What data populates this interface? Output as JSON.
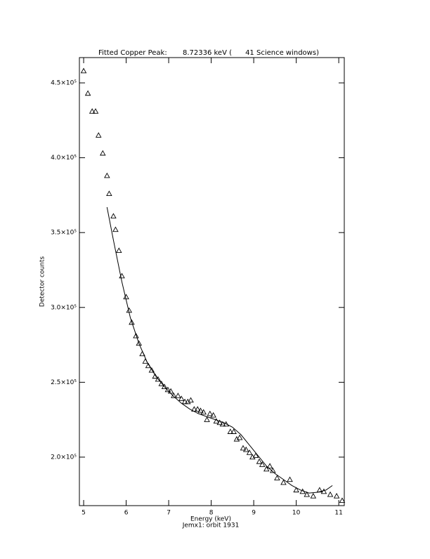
{
  "chart_data": {
    "type": "scatter",
    "title": "Fitted Copper Peak:       8.72336 keV (      41 Science windows)",
    "x_label": "Energy (keV)",
    "y_label": "Detector counts",
    "subtitle": "Jemx1: orbit 1931",
    "xlim": [
      4.9,
      11.13
    ],
    "ylim": [
      167600,
      466900
    ],
    "xticks": [
      5,
      6,
      7,
      8,
      9,
      10,
      11
    ],
    "yticks": [
      {
        "value": 200000,
        "label": "2.0×10⁵"
      },
      {
        "value": 250000,
        "label": "2.5×10⁵"
      },
      {
        "value": 300000,
        "label": "3.0×10⁵"
      },
      {
        "value": 350000,
        "label": "3.5×10⁵"
      },
      {
        "value": 400000,
        "label": "4.0×10⁵"
      },
      {
        "value": 450000,
        "label": "4.5×10⁵"
      }
    ],
    "color": "#000000",
    "points": {
      "x": [
        5.0,
        5.1,
        5.2,
        5.28,
        5.35,
        5.45,
        5.55,
        5.6,
        5.7,
        5.75,
        5.83,
        5.9,
        6.0,
        6.07,
        6.13,
        6.23,
        6.3,
        6.38,
        6.45,
        6.52,
        6.6,
        6.68,
        6.75,
        6.83,
        6.9,
        6.98,
        7.05,
        7.12,
        7.22,
        7.3,
        7.38,
        7.45,
        7.52,
        7.6,
        7.68,
        7.75,
        7.82,
        7.9,
        7.97,
        8.05,
        8.12,
        8.2,
        8.27,
        8.35,
        8.45,
        8.53,
        8.6,
        8.67,
        8.75,
        8.82,
        8.9,
        8.97,
        9.05,
        9.13,
        9.2,
        9.3,
        9.38,
        9.45,
        9.55,
        9.7,
        9.85,
        10.0,
        10.15,
        10.25,
        10.4,
        10.55,
        10.65,
        10.8,
        10.95,
        11.08
      ],
      "y": [
        458000,
        443000,
        431000,
        431000,
        415000,
        403000,
        388000,
        376000,
        361000,
        352000,
        338000,
        321000,
        307000,
        298000,
        290000,
        281000,
        276000,
        269000,
        264000,
        261000,
        258000,
        254000,
        252000,
        249000,
        247000,
        245000,
        244000,
        241000,
        241000,
        239000,
        237000,
        237000,
        238000,
        232000,
        232000,
        231000,
        230000,
        225000,
        229000,
        228000,
        224000,
        223000,
        222000,
        222000,
        217000,
        217000,
        212000,
        213000,
        206000,
        205000,
        203000,
        200000,
        201000,
        197000,
        195000,
        192000,
        194000,
        191000,
        186000,
        183000,
        185000,
        178000,
        177000,
        175000,
        174000,
        178000,
        177000,
        175000,
        174000,
        171000
      ]
    },
    "fit": {
      "x": [
        5.55,
        5.7,
        5.9,
        6.1,
        6.3,
        6.5,
        6.7,
        6.9,
        7.1,
        7.3,
        7.5,
        7.7,
        7.9,
        8.1,
        8.3,
        8.5,
        8.7,
        8.9,
        9.1,
        9.3,
        9.5,
        9.7,
        9.9,
        10.1,
        10.3,
        10.5,
        10.7,
        10.85
      ],
      "y": [
        367000,
        345000,
        317000,
        293000,
        276000,
        263000,
        254000,
        247000,
        241000,
        236000,
        232000,
        229000,
        227000,
        225000,
        223000,
        220000,
        215000,
        208000,
        201000,
        194000,
        189000,
        185000,
        181000,
        178000,
        176000,
        176500,
        178000,
        181000
      ]
    }
  }
}
